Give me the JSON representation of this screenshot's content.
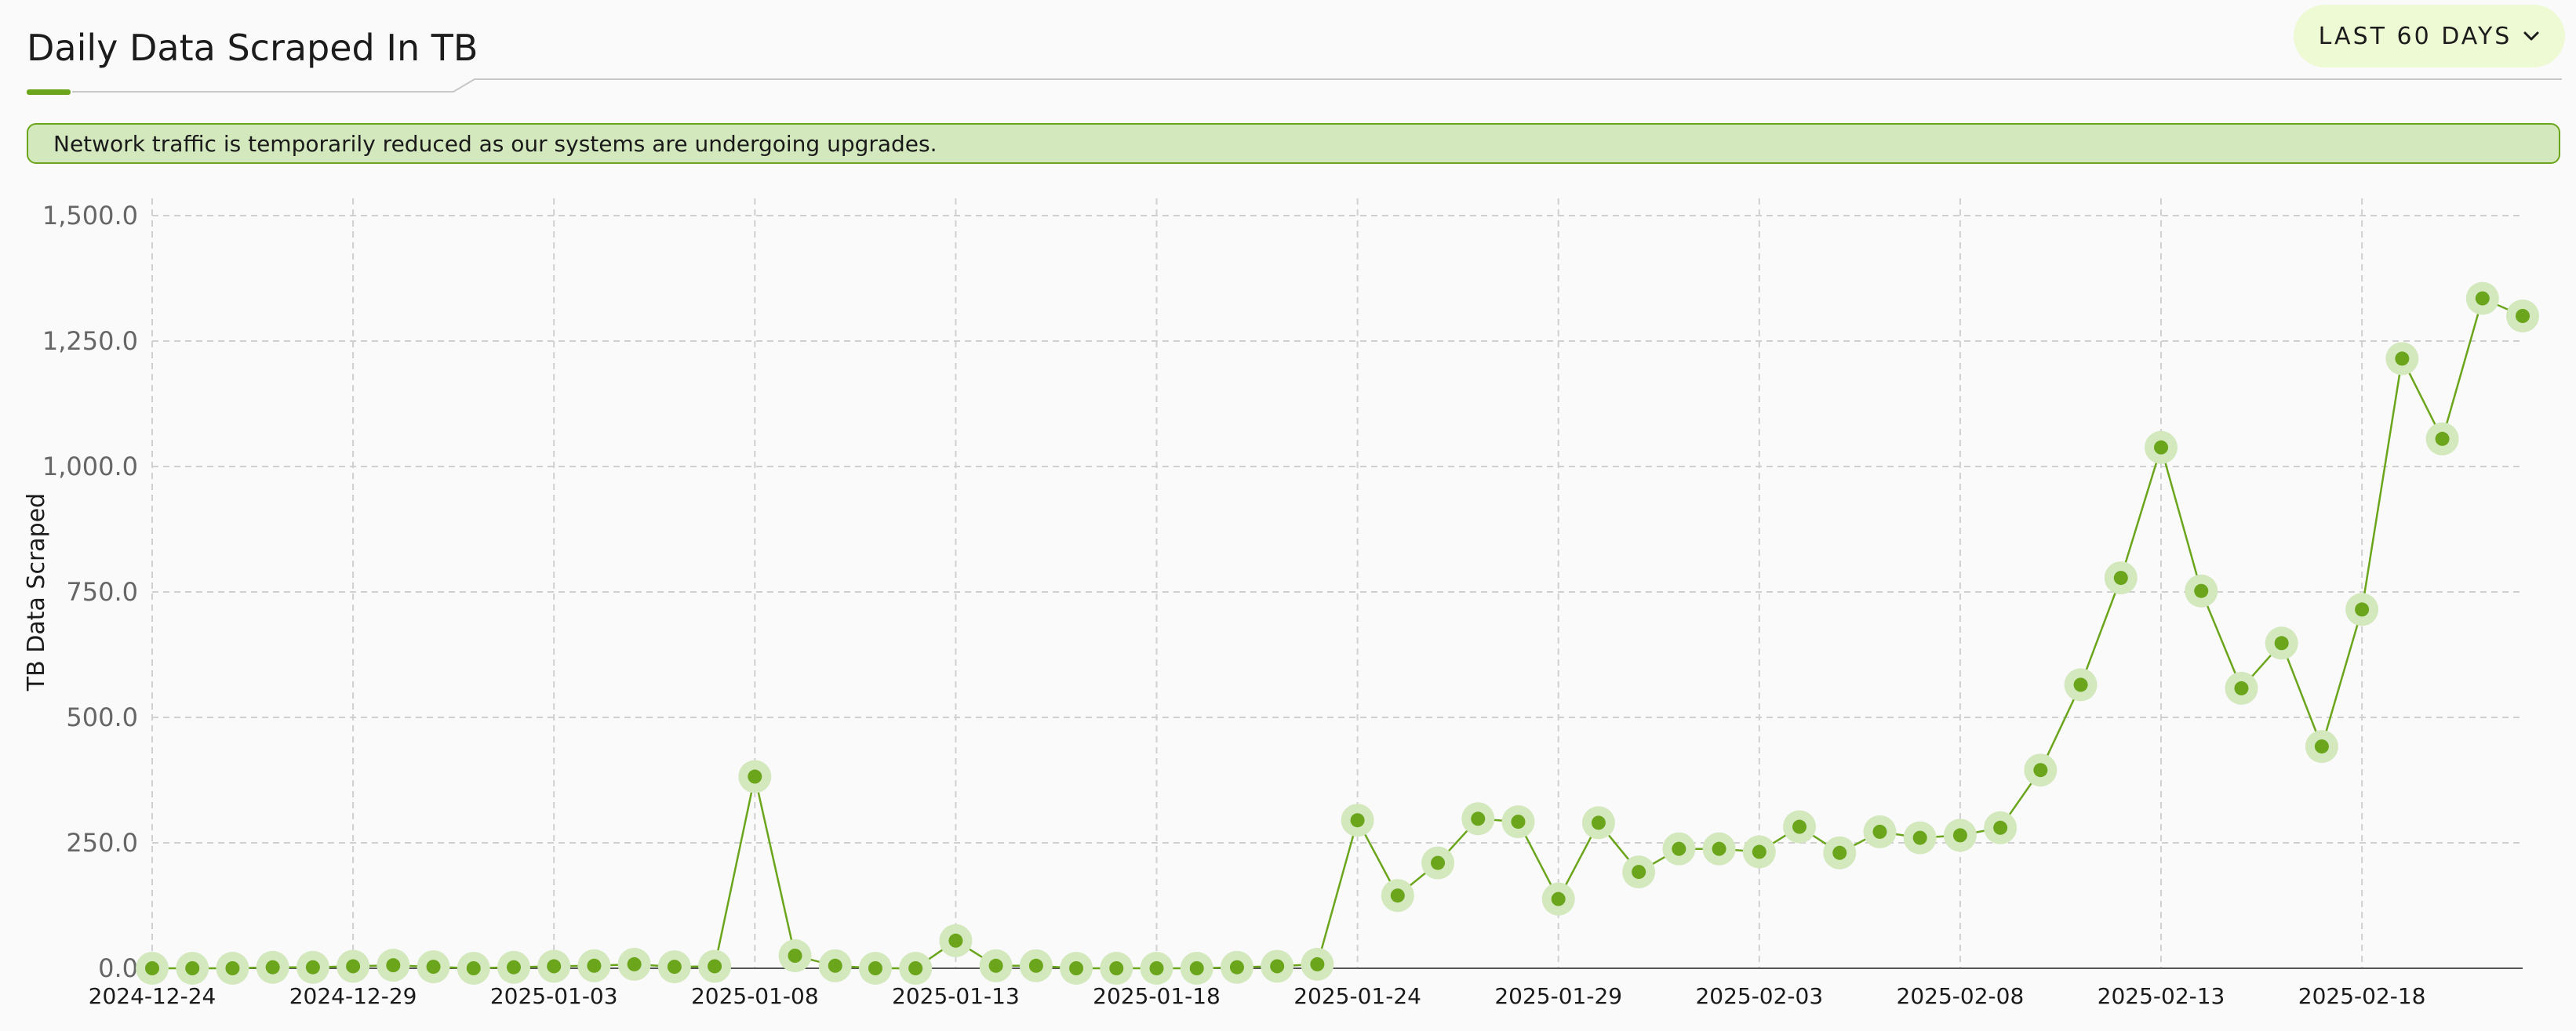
{
  "header": {
    "title": "Daily Data Scraped In TB",
    "range_label": "LAST 60 DAYS",
    "range_icon": "chevron-down-icon"
  },
  "notice": {
    "text": "Network traffic is temporarily reduced as our systems are undergoing upgrades."
  },
  "colors": {
    "accent": "#6aa51c",
    "marker_halo": "#d3e8bd",
    "notice_bg": "#d3e8bd",
    "button_bg": "#eefad3",
    "grid": "#d0d0d0",
    "tick_text": "#666666"
  },
  "chart_data": {
    "type": "line",
    "ylabel": "TB Data Scraped",
    "xlabel": "",
    "ylim": [
      0,
      1500
    ],
    "yticks": [
      "0.0",
      "250.0",
      "500.0",
      "750.0",
      "1,000.0",
      "1,250.0",
      "1,500.0"
    ],
    "ytick_values": [
      0,
      250,
      500,
      750,
      1000,
      1250,
      1500
    ],
    "grid": true,
    "x": [
      "2024-12-24",
      "2024-12-25",
      "2024-12-26",
      "2024-12-27",
      "2024-12-28",
      "2024-12-29",
      "2024-12-30",
      "2024-12-31",
      "2025-01-01",
      "2025-01-02",
      "2025-01-03",
      "2025-01-04",
      "2025-01-05",
      "2025-01-06",
      "2025-01-07",
      "2025-01-08",
      "2025-01-09",
      "2025-01-10",
      "2025-01-11",
      "2025-01-12",
      "2025-01-13",
      "2025-01-14",
      "2025-01-15",
      "2025-01-16",
      "2025-01-17",
      "2025-01-18",
      "2025-01-19",
      "2025-01-20",
      "2025-01-21",
      "2025-01-22",
      "2025-01-24",
      "2025-01-25",
      "2025-01-26",
      "2025-01-27",
      "2025-01-28",
      "2025-01-29",
      "2025-01-30",
      "2025-01-31",
      "2025-02-01",
      "2025-02-02",
      "2025-02-03",
      "2025-02-04",
      "2025-02-05",
      "2025-02-06",
      "2025-02-07",
      "2025-02-08",
      "2025-02-09",
      "2025-02-10",
      "2025-02-11",
      "2025-02-12",
      "2025-02-13",
      "2025-02-14",
      "2025-02-15",
      "2025-02-16",
      "2025-02-17",
      "2025-02-18",
      "2025-02-19",
      "2025-02-20",
      "2025-02-21",
      "2025-02-22"
    ],
    "x_tick_labels": [
      "2024-12-24",
      "2024-12-29",
      "2025-01-03",
      "2025-01-08",
      "2025-01-13",
      "2025-01-18",
      "2025-01-24",
      "2025-01-29",
      "2025-02-03",
      "2025-02-08",
      "2025-02-13",
      "2025-02-18"
    ],
    "x_tick_index": [
      0,
      5,
      10,
      15,
      20,
      25,
      30,
      35,
      40,
      45,
      50,
      55
    ],
    "series": [
      {
        "values": [
          0,
          0,
          0,
          2,
          2,
          4,
          6,
          3,
          0,
          2,
          4,
          5,
          8,
          3,
          4,
          382,
          25,
          5,
          0,
          0,
          55,
          5,
          5,
          0,
          0,
          0,
          0,
          2,
          4,
          8,
          295,
          145,
          210,
          298,
          292,
          138,
          290,
          192,
          238,
          238,
          232,
          282,
          230,
          272,
          260,
          265,
          280,
          395,
          565,
          778,
          1038,
          752,
          558,
          648,
          442,
          715,
          1215,
          1055,
          1335,
          1300
        ]
      }
    ]
  }
}
